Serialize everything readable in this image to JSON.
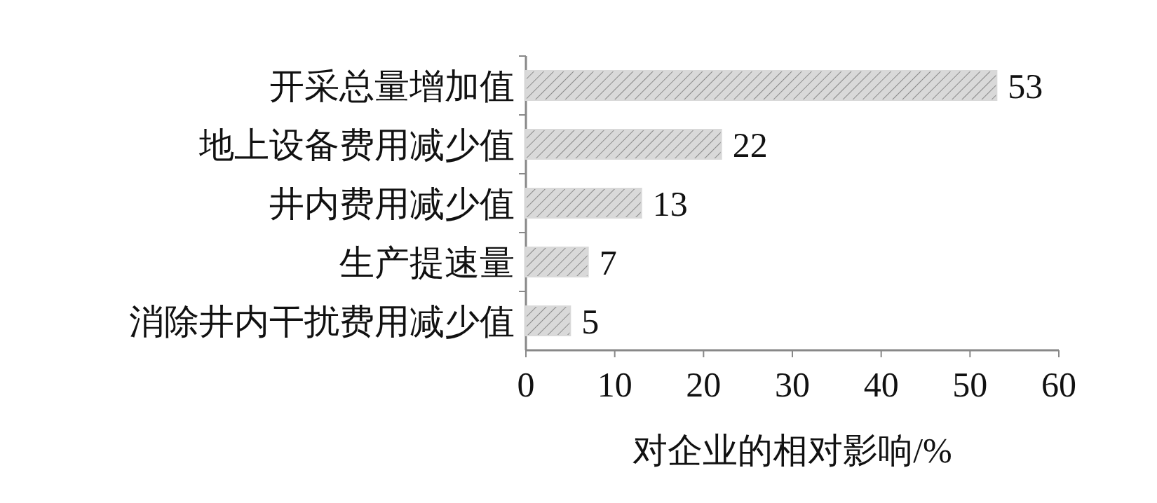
{
  "chart_data": {
    "type": "bar",
    "orientation": "horizontal",
    "categories": [
      "开采总量增加值",
      "地上设备费用减少值",
      "井内费用减少值",
      "生产提速量",
      "消除井内干扰费用减少值"
    ],
    "values": [
      53,
      22,
      13,
      7,
      5
    ],
    "color": "#d9d9d9",
    "xlim": [
      0,
      60
    ],
    "xticks": [
      0,
      10,
      20,
      30,
      40,
      50,
      60
    ],
    "xlabel": "对企业的相对影响/%",
    "data_labels": true,
    "grid": false
  }
}
